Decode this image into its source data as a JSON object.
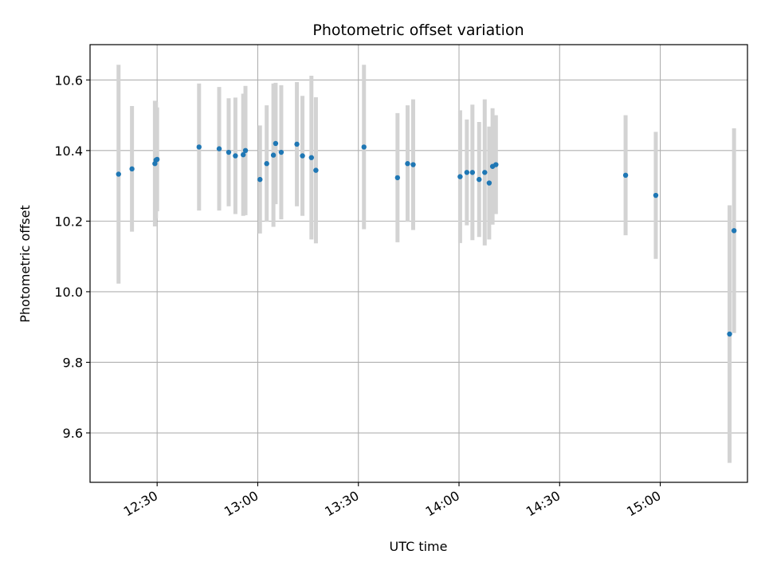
{
  "chart_data": {
    "type": "scatter",
    "title": "Photometric offset variation",
    "xlabel": "UTC time",
    "ylabel": "Photometric offset",
    "x_axis_kind": "time (HH:MM, UTC)",
    "xlim": [
      "12:10",
      "15:26"
    ],
    "ylim": [
      9.46,
      10.7
    ],
    "x_ticks": [
      "12:30",
      "13:00",
      "13:30",
      "14:00",
      "14:30",
      "15:00"
    ],
    "y_ticks": [
      9.6,
      9.8,
      10.0,
      10.2,
      10.4,
      10.6
    ],
    "y_tick_labels": [
      "9.6",
      "9.8",
      "10.0",
      "10.2",
      "10.4",
      "10.6"
    ],
    "grid": true,
    "x_tick_rotation": "30°",
    "marker_color": "#1f77b4",
    "errorbar_color": "#d3d3d3",
    "series": [
      {
        "points": [
          {
            "t": "12:18:30",
            "y": 10.333,
            "err": 0.31
          },
          {
            "t": "12:22:30",
            "y": 10.348,
            "err": 0.178
          },
          {
            "t": "12:29:20",
            "y": 10.363,
            "err": 0.178
          },
          {
            "t": "12:29:40",
            "y": 10.373,
            "err": 0.165
          },
          {
            "t": "12:30:00",
            "y": 10.375,
            "err": 0.147
          },
          {
            "t": "12:42:30",
            "y": 10.41,
            "err": 0.18
          },
          {
            "t": "12:48:30",
            "y": 10.405,
            "err": 0.175
          },
          {
            "t": "12:51:20",
            "y": 10.395,
            "err": 0.153
          },
          {
            "t": "12:53:20",
            "y": 10.385,
            "err": 0.165
          },
          {
            "t": "12:55:40",
            "y": 10.388,
            "err": 0.173
          },
          {
            "t": "12:56:20",
            "y": 10.4,
            "err": 0.183
          },
          {
            "t": "13:00:40",
            "y": 10.318,
            "err": 0.153
          },
          {
            "t": "13:02:40",
            "y": 10.363,
            "err": 0.165
          },
          {
            "t": "13:04:40",
            "y": 10.387,
            "err": 0.203
          },
          {
            "t": "13:05:20",
            "y": 10.42,
            "err": 0.172
          },
          {
            "t": "13:07:00",
            "y": 10.395,
            "err": 0.19
          },
          {
            "t": "13:11:40",
            "y": 10.418,
            "err": 0.176
          },
          {
            "t": "13:13:20",
            "y": 10.385,
            "err": 0.17
          },
          {
            "t": "13:16:00",
            "y": 10.38,
            "err": 0.232
          },
          {
            "t": "13:17:20",
            "y": 10.344,
            "err": 0.207
          },
          {
            "t": "13:31:40",
            "y": 10.41,
            "err": 0.233
          },
          {
            "t": "13:41:40",
            "y": 10.323,
            "err": 0.183
          },
          {
            "t": "13:44:40",
            "y": 10.363,
            "err": 0.165
          },
          {
            "t": "13:46:20",
            "y": 10.36,
            "err": 0.185
          },
          {
            "t": "14:00:20",
            "y": 10.326,
            "err": 0.188
          },
          {
            "t": "14:02:20",
            "y": 10.338,
            "err": 0.15
          },
          {
            "t": "14:04:00",
            "y": 10.338,
            "err": 0.192
          },
          {
            "t": "14:06:00",
            "y": 10.318,
            "err": 0.163
          },
          {
            "t": "14:07:40",
            "y": 10.338,
            "err": 0.207
          },
          {
            "t": "14:09:00",
            "y": 10.308,
            "err": 0.16
          },
          {
            "t": "14:10:00",
            "y": 10.355,
            "err": 0.165
          },
          {
            "t": "14:11:00",
            "y": 10.36,
            "err": 0.14
          },
          {
            "t": "14:49:40",
            "y": 10.33,
            "err": 0.17
          },
          {
            "t": "14:58:40",
            "y": 10.273,
            "err": 0.18
          },
          {
            "t": "15:20:40",
            "y": 9.88,
            "err": 0.365
          },
          {
            "t": "15:22:00",
            "y": 10.173,
            "err": 0.29
          }
        ]
      }
    ]
  }
}
